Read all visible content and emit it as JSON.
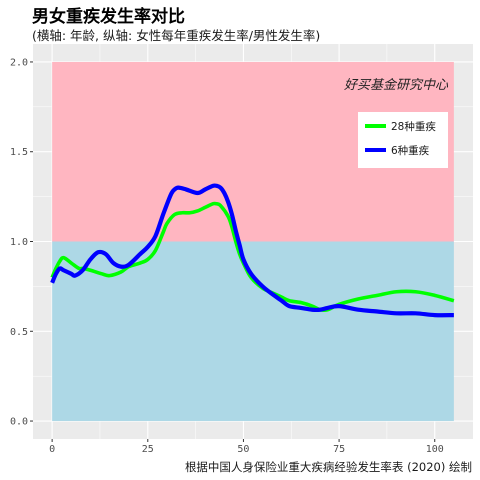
{
  "chart_data": {
    "type": "line",
    "title": "男女重疾发生率对比",
    "subtitle": "(横轴: 年龄, 纵轴: 女性每年重疾发生率/男性发生率)",
    "caption": "根据中国人身保险业重大疾病经验发生率表 (2020) 绘制",
    "watermark": "好买基金研究中心",
    "xlim": [
      -5,
      110
    ],
    "ylim": [
      -0.1,
      2.1
    ],
    "x_ticks": [
      0,
      25,
      50,
      75,
      100
    ],
    "x_tick_labels": [
      "0",
      "25",
      "50",
      "75",
      "100"
    ],
    "y_ticks": [
      0.0,
      0.5,
      1.0,
      1.5,
      2.0
    ],
    "y_tick_labels": [
      "0.0",
      "0.5",
      "1.0",
      "1.5",
      "2.0"
    ],
    "grid": true,
    "legend_position": "top-right",
    "bands": [
      {
        "x": [
          0,
          105
        ],
        "y": [
          1.0,
          2.0
        ],
        "color": "#FFB6C1"
      },
      {
        "x": [
          0,
          105
        ],
        "y": [
          0.0,
          1.0
        ],
        "color": "#ADD8E6"
      }
    ],
    "series": [
      {
        "name": "28种重疾",
        "color": "#00FF00",
        "x": [
          0,
          1,
          2,
          3,
          5,
          7,
          8,
          10,
          13,
          15,
          18,
          20,
          23,
          25,
          27,
          29,
          30,
          32,
          34,
          36,
          38,
          40,
          42,
          43,
          44,
          46,
          47,
          48,
          49,
          50,
          52,
          55,
          58,
          60,
          62,
          65,
          68,
          70,
          72,
          75,
          80,
          85,
          90,
          95,
          100,
          105
        ],
        "y": [
          0.8,
          0.85,
          0.89,
          0.91,
          0.88,
          0.85,
          0.85,
          0.84,
          0.82,
          0.81,
          0.83,
          0.86,
          0.88,
          0.9,
          0.95,
          1.05,
          1.1,
          1.15,
          1.16,
          1.16,
          1.17,
          1.19,
          1.21,
          1.21,
          1.2,
          1.14,
          1.08,
          1.0,
          0.93,
          0.88,
          0.8,
          0.74,
          0.71,
          0.69,
          0.67,
          0.66,
          0.64,
          0.62,
          0.62,
          0.65,
          0.68,
          0.7,
          0.72,
          0.72,
          0.7,
          0.67
        ]
      },
      {
        "name": "6种重疾",
        "color": "#0000FF",
        "x": [
          0,
          1,
          2,
          3,
          5,
          6,
          8,
          10,
          12,
          14,
          16,
          18,
          20,
          23,
          25,
          27,
          29,
          31,
          32,
          33,
          35,
          38,
          40,
          42,
          43,
          44,
          45,
          46,
          47,
          48,
          49,
          50,
          52,
          55,
          58,
          60,
          62,
          65,
          68,
          70,
          72,
          75,
          80,
          85,
          90,
          95,
          100,
          105
        ],
        "y": [
          0.77,
          0.82,
          0.85,
          0.84,
          0.82,
          0.81,
          0.84,
          0.9,
          0.94,
          0.93,
          0.88,
          0.86,
          0.87,
          0.93,
          0.97,
          1.03,
          1.15,
          1.26,
          1.29,
          1.3,
          1.29,
          1.27,
          1.29,
          1.31,
          1.31,
          1.3,
          1.27,
          1.22,
          1.15,
          1.06,
          0.98,
          0.9,
          0.82,
          0.75,
          0.7,
          0.67,
          0.64,
          0.63,
          0.62,
          0.62,
          0.63,
          0.64,
          0.62,
          0.61,
          0.6,
          0.6,
          0.59,
          0.59
        ]
      }
    ]
  }
}
